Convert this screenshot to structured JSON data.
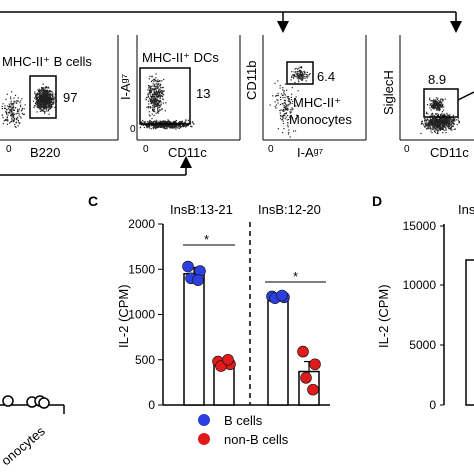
{
  "flow_panels": [
    {
      "gate_title": "MHC-II⁺ B cells",
      "percent": "97",
      "x_axis": "B220",
      "y_axis": "",
      "x_tick": "0",
      "y_tick": ""
    },
    {
      "gate_title": "MHC-II⁺ DCs",
      "percent": "13",
      "x_axis": "CD11c",
      "y_axis": "I-Aᵍ⁷",
      "x_tick": "0",
      "y_tick": "0"
    },
    {
      "gate_title": "MHC-II⁺ Monocytes",
      "percent": "6.4",
      "x_axis": "I-Aᵍ⁷",
      "y_axis": "CD11b",
      "x_tick": "0",
      "y_tick": ""
    },
    {
      "gate_title": "",
      "percent": "8.9",
      "x_axis": "CD11c",
      "y_axis": "SiglecH",
      "x_tick": "0",
      "y_tick": ""
    }
  ],
  "left_fragment": {
    "label": "onocytes"
  },
  "panel_c": {
    "letter": "C",
    "ylabel": "IL-2 (CPM)",
    "group_labels": [
      "InsB:13-21",
      "InsB:12-20"
    ],
    "significance": [
      "*",
      "*"
    ],
    "legend": [
      {
        "name": "B cells",
        "color": "#2d3fe0"
      },
      {
        "name": "non-B cells",
        "color": "#e01b1b"
      }
    ]
  },
  "panel_d": {
    "letter": "D",
    "ylabel": "IL-2 (CPM)",
    "group_label_fragment": "Ins",
    "ticks": [
      "15000",
      "10000",
      "5000",
      "0"
    ]
  },
  "chart_data": {
    "type": "bar",
    "categories": [
      "InsB:13-21 B cells",
      "InsB:13-21 non-B cells",
      "InsB:12-20 B cells",
      "InsB:12-20 non-B cells"
    ],
    "values": [
      1450,
      470,
      1190,
      370
    ],
    "errors": [
      70,
      25,
      20,
      110
    ],
    "points": [
      [
        1530,
        1480,
        1400,
        1380
      ],
      [
        480,
        450,
        430,
        500
      ],
      [
        1200,
        1190,
        1180,
        1210
      ],
      [
        590,
        450,
        300,
        170
      ]
    ],
    "point_colors": [
      "#2d3fe0",
      "#e01b1b",
      "#2d3fe0",
      "#e01b1b"
    ],
    "ylabel": "IL-2 (CPM)",
    "ylim": [
      0,
      2000
    ],
    "yticks": [
      0,
      500,
      1000,
      1500,
      2000
    ]
  }
}
